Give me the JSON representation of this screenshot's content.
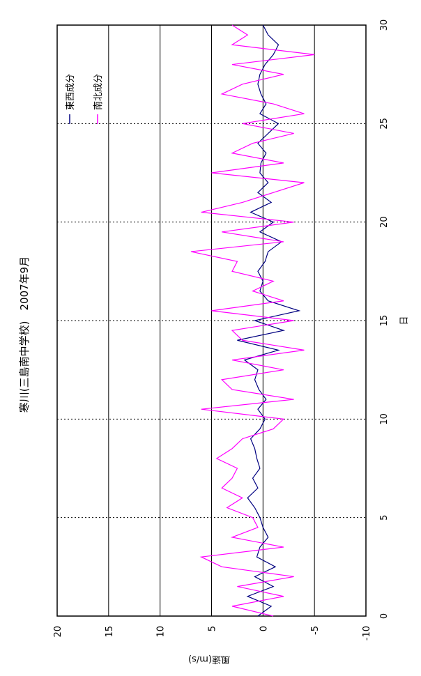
{
  "chart_data": {
    "type": "line",
    "title": "寒川(三島南中学校)　2007年9月",
    "x_label": "日",
    "y_label": "風速(m/s)",
    "x": [
      0,
      0.5,
      1,
      1.5,
      2,
      2.5,
      3,
      3.5,
      4,
      4.5,
      5,
      5.5,
      6,
      6.5,
      7,
      7.5,
      8,
      8.5,
      9,
      9.5,
      10,
      10.5,
      11,
      11.5,
      12,
      12.5,
      13,
      13.5,
      14,
      14.5,
      15,
      15.5,
      16,
      16.5,
      17,
      17.5,
      18,
      18.5,
      19,
      19.5,
      20,
      20.5,
      21,
      21.5,
      22,
      22.5,
      23,
      23.5,
      24,
      24.5,
      25,
      25.5,
      26,
      26.5,
      27,
      27.5,
      28,
      28.5,
      29,
      29.5,
      30
    ],
    "series": [
      {
        "name": "東西成分",
        "color": "#000080",
        "values": [
          0.5,
          -0.8,
          1.5,
          -1,
          0.8,
          -1.2,
          0.6,
          0.3,
          -0.5,
          0,
          0.3,
          0.8,
          1.5,
          0.5,
          1,
          0.3,
          0.6,
          0.8,
          1.2,
          0.3,
          -0.2,
          0.5,
          -0.3,
          0.4,
          0.8,
          0.5,
          1.8,
          -1.5,
          2.5,
          -2,
          0.8,
          -3.5,
          -0.5,
          0.3,
          0,
          0.5,
          -0.2,
          -0.5,
          -1.8,
          0.3,
          -1,
          1.2,
          -0.8,
          0.5,
          -0.5,
          0.3,
          0.2,
          -0.3,
          0.5,
          -0.5,
          -1.5,
          0.3,
          -0.3,
          0.2,
          0.5,
          0.3,
          -0.2,
          -1,
          -1.5,
          -0.5,
          0
        ]
      },
      {
        "name": "南北成分",
        "color": "#ff00ff",
        "values": [
          -1,
          3,
          -2,
          2.5,
          -3,
          4,
          6,
          -2,
          3,
          0.5,
          1,
          3.5,
          2,
          4,
          3,
          2.5,
          4.5,
          3,
          2,
          -1,
          -2,
          6,
          -3,
          3,
          4,
          -2,
          3,
          -4,
          2,
          3,
          -3,
          5,
          -2,
          1,
          -1,
          3,
          2.5,
          7,
          -2,
          4,
          -3,
          6,
          2,
          -1,
          -4,
          5,
          -2,
          3,
          1,
          -3,
          2,
          -4,
          -1,
          4,
          2,
          -2,
          3,
          -5,
          3,
          1.5,
          3
        ]
      }
    ],
    "xlim": [
      0,
      30
    ],
    "ylim": [
      -10,
      20
    ],
    "xticks": [
      0,
      5,
      10,
      15,
      20,
      25,
      30
    ],
    "yticks": [
      -10,
      -5,
      0,
      5,
      10,
      15,
      20
    ],
    "grid": true,
    "legend": "upper right"
  }
}
